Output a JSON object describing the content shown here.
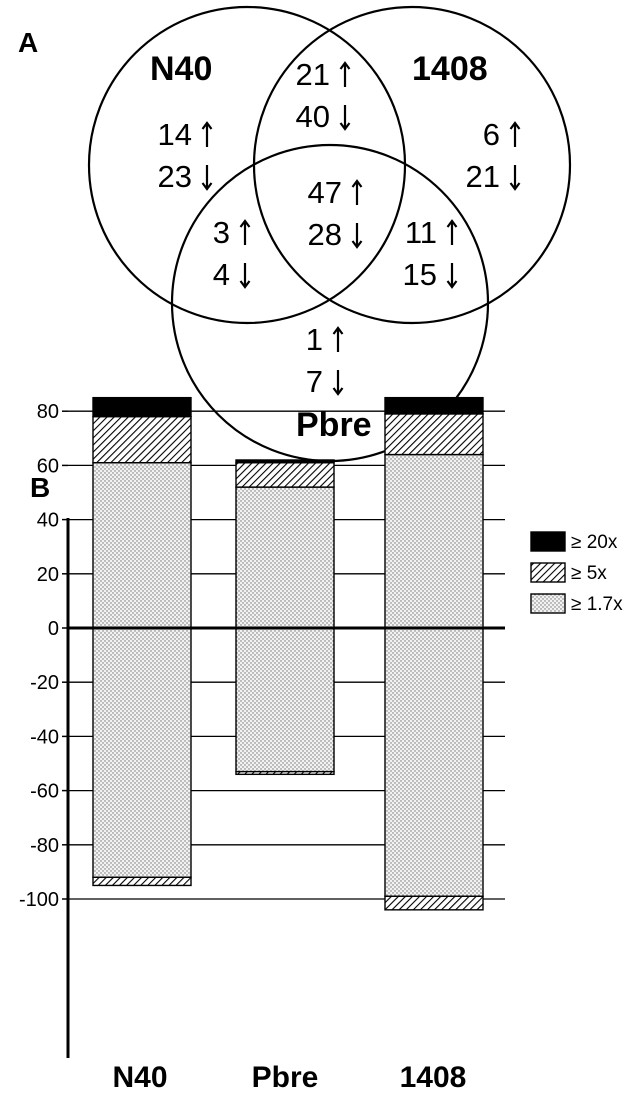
{
  "panel_a": {
    "letter": "A",
    "sets": [
      "N40",
      "1408",
      "Pbre"
    ],
    "regions": [
      {
        "id": "n40-only",
        "up": "14",
        "down": "23"
      },
      {
        "id": "n40-1408",
        "up": "21",
        "down": "40"
      },
      {
        "id": "1408-only",
        "up": "6",
        "down": "21"
      },
      {
        "id": "n40-pbre",
        "up": "3",
        "down": "4"
      },
      {
        "id": "all-three",
        "up": "47",
        "down": "28"
      },
      {
        "id": "1408-pbre",
        "up": "11",
        "down": "15"
      },
      {
        "id": "pbre-only",
        "up": "1",
        "down": "7"
      }
    ]
  },
  "panel_b": {
    "letter": "B"
  },
  "chart_data": {
    "type": "bar",
    "stacked": true,
    "categories": [
      "N40",
      "Pbre",
      "1408"
    ],
    "ylim": [
      -105,
      90
    ],
    "yticks": [
      80,
      60,
      40,
      20,
      0,
      -20,
      -40,
      -60,
      -80,
      -100
    ],
    "grid": true,
    "legend_position": "top-right",
    "series": [
      {
        "name": "≥ 1.7x",
        "pattern": "dots",
        "values": [
          61,
          52,
          64
        ],
        "negative_values": [
          -92,
          -53,
          -99
        ]
      },
      {
        "name": "≥ 5x",
        "pattern": "hatch",
        "values": [
          17,
          9,
          15
        ],
        "negative_values": [
          -3,
          -1,
          -5
        ]
      },
      {
        "name": "≥ 20x",
        "pattern": "solid",
        "values": [
          7,
          1,
          6
        ],
        "negative_values": [
          0,
          0,
          0
        ]
      }
    ],
    "colors": {
      "solid": "#000000",
      "hatch": "#000000",
      "dots": "#7a7a7a",
      "background": "#ffffff"
    }
  }
}
